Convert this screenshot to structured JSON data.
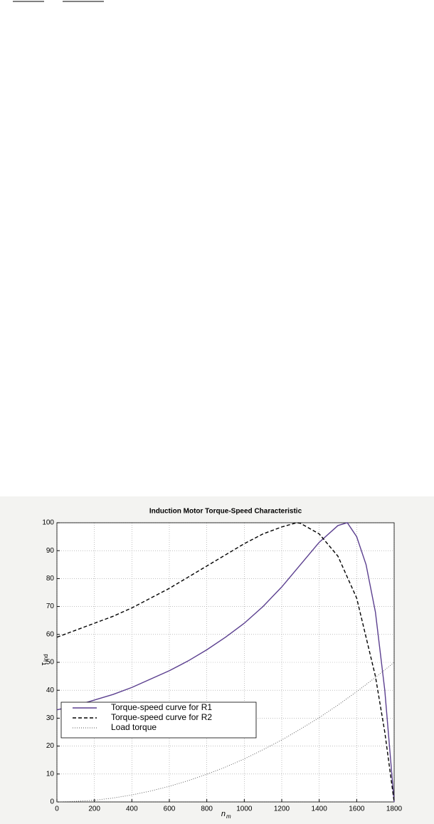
{
  "chart_data": {
    "type": "line",
    "title": "Induction Motor Torque-Speed Characteristic",
    "x_label": "n",
    "x_label_sub": "m",
    "y_label": "τ",
    "y_label_sub": "ind",
    "xlim": [
      0,
      1800
    ],
    "xticks": [
      0,
      200,
      400,
      600,
      800,
      1000,
      1200,
      1400,
      1600,
      1800
    ],
    "ylim": [
      0,
      100
    ],
    "yticks": [
      0,
      10,
      20,
      30,
      40,
      50,
      60,
      70,
      80,
      90,
      100
    ],
    "grid": true,
    "legend": "lower left",
    "series": [
      {
        "name": "Torque-speed curve for R1",
        "color": "#5b3f8f",
        "style": "solid",
        "x": [
          0,
          100,
          200,
          300,
          400,
          500,
          600,
          700,
          800,
          900,
          1000,
          1100,
          1200,
          1300,
          1400,
          1500,
          1550,
          1600,
          1650,
          1700,
          1750,
          1800
        ],
        "values": [
          33,
          34.5,
          36.5,
          38.5,
          41,
          44,
          47,
          50.5,
          54.5,
          59,
          64,
          70,
          77,
          85,
          93,
          99,
          100,
          95,
          85,
          68,
          40,
          0
        ]
      },
      {
        "name": "Torque-speed curve for R2",
        "color": "#000000",
        "style": "dashed",
        "x": [
          0,
          100,
          200,
          300,
          400,
          500,
          600,
          700,
          800,
          900,
          1000,
          1100,
          1200,
          1280,
          1300,
          1400,
          1500,
          1600,
          1700,
          1750,
          1800
        ],
        "values": [
          59,
          61.5,
          64,
          66.5,
          69.5,
          73,
          76.5,
          80.5,
          84.5,
          88.5,
          92.5,
          96,
          98.5,
          100,
          99.8,
          96,
          88,
          73,
          45,
          25,
          0
        ]
      },
      {
        "name": "Load torque",
        "color": "#555555",
        "style": "dotted",
        "x": [
          0,
          100,
          200,
          300,
          400,
          500,
          600,
          700,
          800,
          900,
          1000,
          1100,
          1200,
          1300,
          1400,
          1500,
          1600,
          1700,
          1800
        ],
        "values": [
          0,
          0.2,
          0.6,
          1.4,
          2.5,
          3.9,
          5.6,
          7.6,
          9.9,
          12.5,
          15.4,
          18.7,
          22.2,
          26.1,
          30.2,
          34.7,
          39.5,
          44.6,
          50
        ]
      }
    ]
  }
}
